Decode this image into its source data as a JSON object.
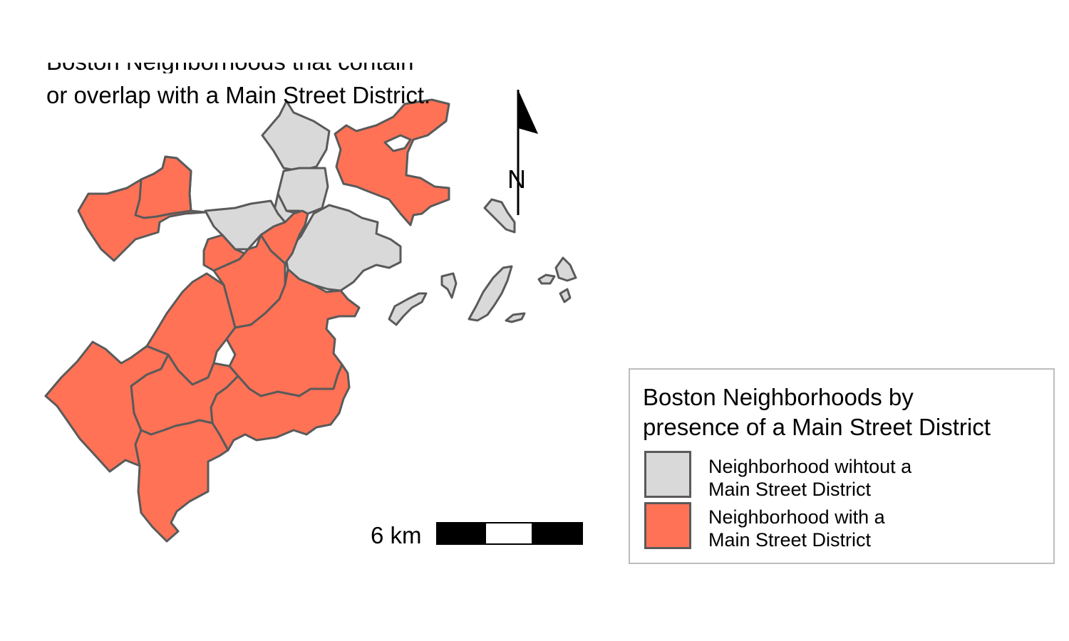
{
  "caption": {
    "line_1": "Boston Neighborhoods that contain",
    "line_2": "or overlap with a Main Street District."
  },
  "legend": {
    "title_line_1": "Boston Neighborhoods by",
    "title_line_2": "presence of a Main Street District",
    "items": [
      {
        "label_line_1": "Neighborhood wihtout a",
        "label_line_2": "Main Street District",
        "color": "#d9d9d9"
      },
      {
        "label_line_1": "Neighborhood with a",
        "label_line_2": "Main Street District",
        "color": "#ff7256"
      }
    ]
  },
  "scale_bar": {
    "label": "6 km"
  },
  "north_arrow": {
    "label": "N"
  },
  "colors": {
    "with_district": "#ff7256",
    "without_district": "#d9d9d9",
    "border": "#5a5a5a",
    "legend_border": "#bdbdbd"
  }
}
